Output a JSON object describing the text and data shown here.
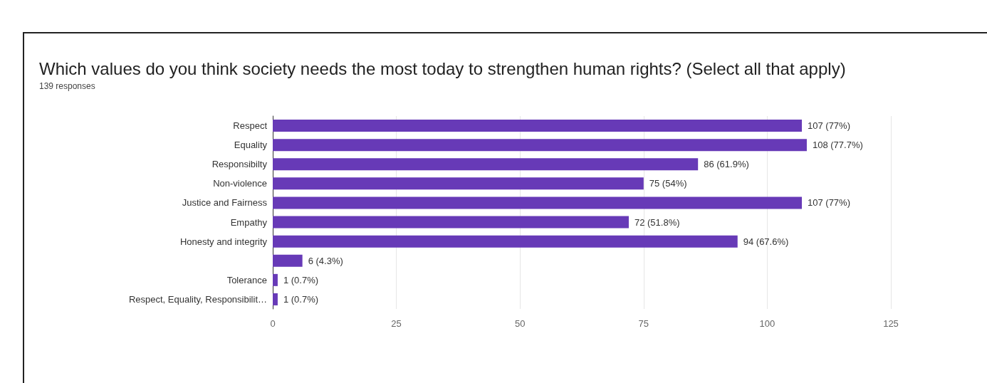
{
  "chart_data": {
    "type": "bar",
    "orientation": "horizontal",
    "title": "Which values do you think society needs the most today to strengthen human rights? (Select all that apply)",
    "subtitle": "139 responses",
    "categories": [
      "Respect",
      "Equality",
      "Responsibilty",
      "Non-violence",
      "Justice and Fairness",
      "Empathy",
      "Honesty and integrity",
      null,
      "Tolerance",
      "Respect, Equality, Responsibilit…"
    ],
    "values": [
      107,
      108,
      86,
      75,
      107,
      72,
      94,
      6,
      1,
      1
    ],
    "value_labels": [
      "107 (77%)",
      "108 (77.7%)",
      "86 (61.9%)",
      "75 (54%)",
      "107 (77%)",
      "72 (51.8%)",
      "94 (67.6%)",
      "6 (4.3%)",
      "1 (0.7%)",
      "1 (0.7%)"
    ],
    "color": "#673ab7",
    "xlim": [
      0,
      125
    ],
    "xticks": [
      0,
      25,
      50,
      75,
      100,
      125
    ],
    "grid": "x"
  }
}
